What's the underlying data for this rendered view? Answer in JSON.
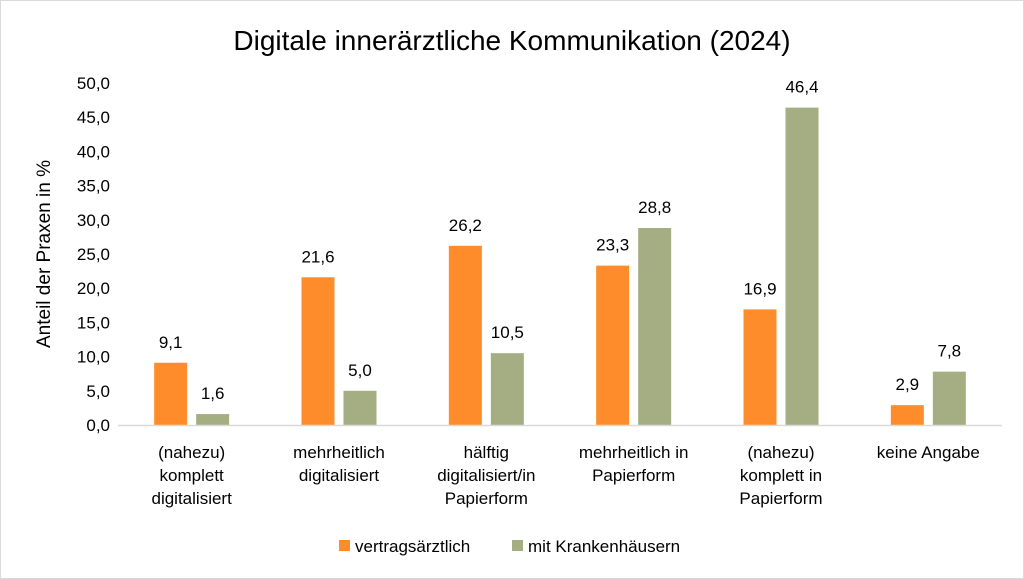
{
  "chart_data": {
    "type": "bar",
    "title": "Digitale innerärztliche Kommunikation (2024)",
    "xlabel": "",
    "ylabel": "Anteil der Praxen in %",
    "ylim": [
      0,
      50
    ],
    "yticks": [
      "0,0",
      "5,0",
      "10,0",
      "15,0",
      "20,0",
      "25,0",
      "30,0",
      "35,0",
      "40,0",
      "45,0",
      "50,0"
    ],
    "grid": false,
    "legend_position": "bottom",
    "categories": [
      [
        "(nahezu)",
        "komplett",
        "digitalisiert"
      ],
      [
        "mehrheitlich",
        "digitalisiert"
      ],
      [
        "hälftig",
        "digitalisiert/in",
        "Papierform"
      ],
      [
        "mehrheitlich in",
        "Papierform"
      ],
      [
        "(nahezu)",
        "komplett in",
        "Papierform"
      ],
      [
        "keine Angabe"
      ]
    ],
    "series": [
      {
        "name": "vertragsärztlich",
        "color": "#FF8C2A",
        "values": [
          9.1,
          21.6,
          26.2,
          23.3,
          16.9,
          2.9
        ],
        "labels": [
          "9,1",
          "21,6",
          "26,2",
          "23,3",
          "16,9",
          "2,9"
        ]
      },
      {
        "name": "mit Krankenhäusern",
        "color": "#A4AE82",
        "values": [
          1.6,
          5.0,
          10.5,
          28.8,
          46.4,
          7.8
        ],
        "labels": [
          "1,6",
          "5,0",
          "10,5",
          "28,8",
          "46,4",
          "7,8"
        ]
      }
    ]
  }
}
